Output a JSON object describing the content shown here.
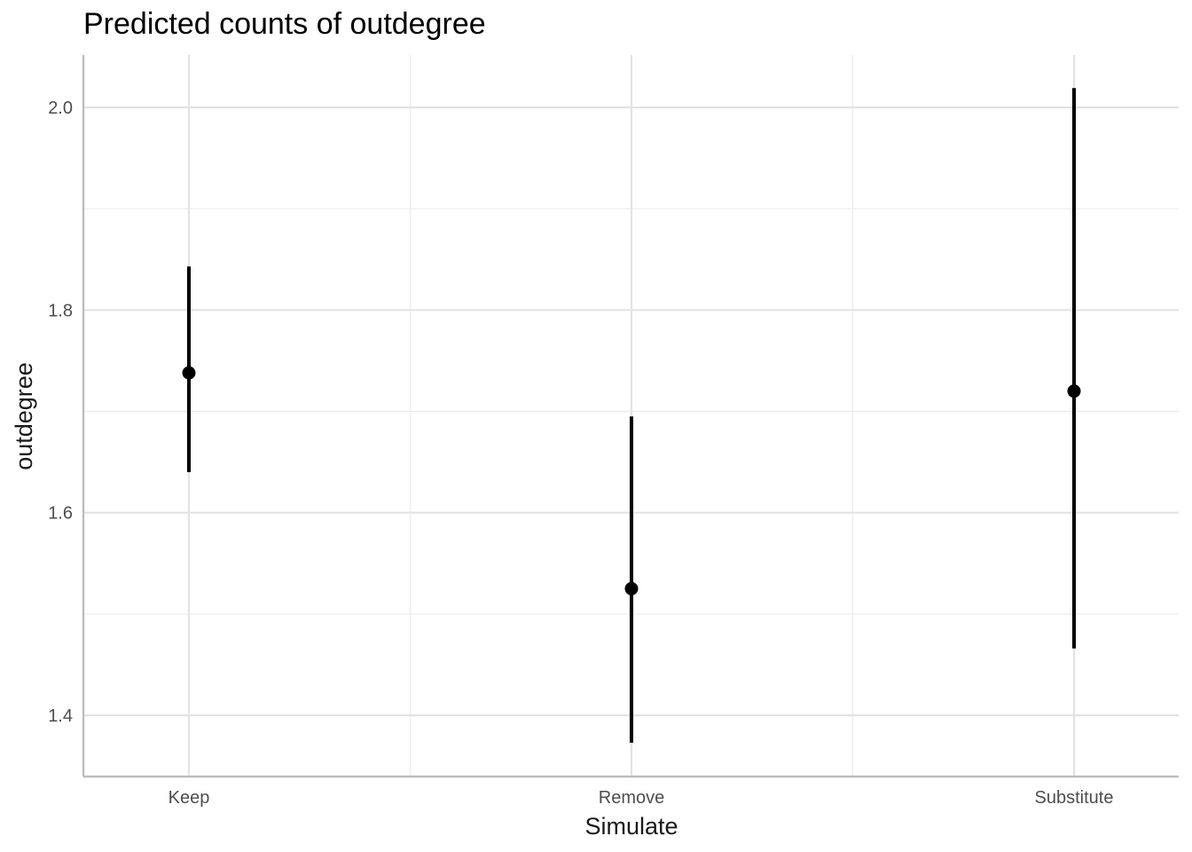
{
  "chart_data": {
    "type": "pointrange",
    "title": "Predicted counts of outdegree",
    "xlabel": "Simulate",
    "ylabel": "outdegree",
    "categories": [
      "Keep",
      "Remove",
      "Substitute"
    ],
    "estimate": [
      1.738,
      1.525,
      1.72
    ],
    "lower": [
      1.64,
      1.373,
      1.466
    ],
    "upper": [
      1.843,
      1.695,
      2.019
    ],
    "ylim": [
      1.34,
      2.05
    ],
    "yticks": [
      1.4,
      1.6,
      1.8,
      2.0
    ],
    "ytick_labels": [
      "1.4",
      "1.6",
      "1.8",
      "2.0"
    ],
    "grid": true,
    "legend": "none"
  }
}
